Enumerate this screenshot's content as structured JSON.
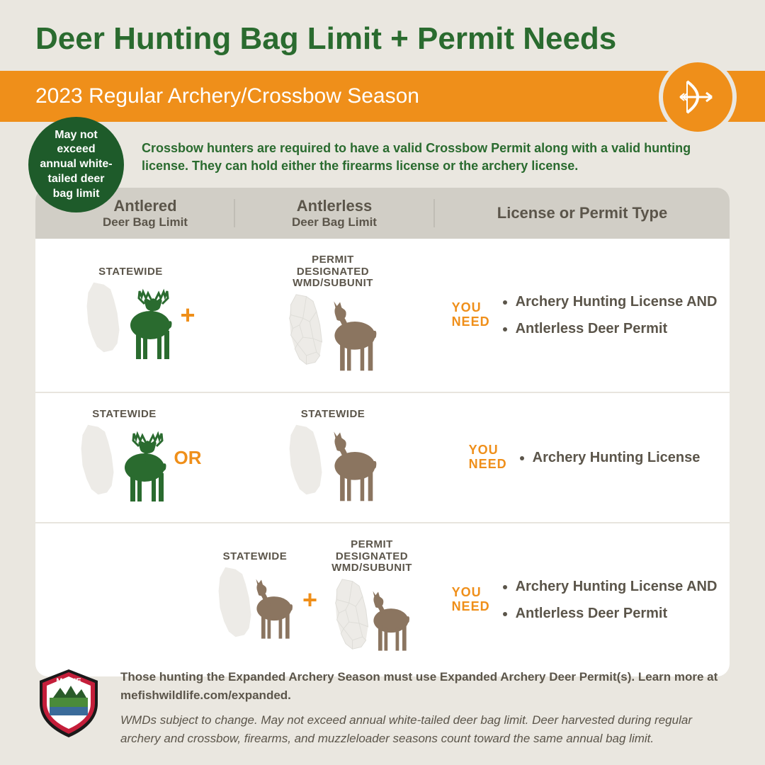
{
  "title": "Deer Hunting Bag Limit + Permit Needs",
  "bannerText": "2023 Regular Archery/Crossbow Season",
  "badgeText": "May not exceed annual white-tailed deer bag limit",
  "noteText": "Crossbow hunters are required to have a valid Crossbow Permit along with a valid hunting license. They can hold either the firearms license or the archery license.",
  "colors": {
    "green": "#2a6b2f",
    "darkGreen": "#1e5b2a",
    "orange": "#ef8f1a",
    "bg": "#eae7e0",
    "brown": "#8b7560",
    "textBrown": "#5b554a",
    "maineGray": "#d8d5cc",
    "maineDetail": "#c9c5bb"
  },
  "headers": {
    "col1Title": "Antlered",
    "col1Sub": "Deer Bag Limit",
    "col2Title": "Antlerless",
    "col2Sub": "Deer Bag Limit",
    "col3": "License or Permit Type"
  },
  "labels": {
    "statewide": "STATEWIDE",
    "permitDesignated": "PERMIT DESIGNATED WMD/SUBUNIT",
    "youNeed": "YOU NEED",
    "plus": "+",
    "or": "OR"
  },
  "rows": [
    {
      "antlered": {
        "label": "STATEWIDE",
        "map": "plain"
      },
      "connector": "+",
      "antlerless": [
        {
          "label": "PERMIT DESIGNATED WMD/SUBUNIT",
          "map": "detailed"
        }
      ],
      "permits": [
        "Archery Hunting License AND",
        "Antlerless Deer Permit"
      ]
    },
    {
      "antlered": {
        "label": "STATEWIDE",
        "map": "plain"
      },
      "connector": "OR",
      "antlerless": [
        {
          "label": "STATEWIDE",
          "map": "plain"
        }
      ],
      "permits": [
        "Archery Hunting License"
      ]
    },
    {
      "antlered": null,
      "connector": "+",
      "antlerless": [
        {
          "label": "STATEWIDE",
          "map": "plain"
        },
        {
          "label": "PERMIT DESIGNATED WMD/SUBUNIT",
          "map": "detailed"
        }
      ],
      "permits": [
        "Archery Hunting License AND",
        "Antlerless Deer Permit"
      ]
    }
  ],
  "footer": {
    "bold": "Those hunting the Expanded Archery Season must use Expanded Archery Deer Permit(s). Learn more at mefishwildlife.com/expanded.",
    "italic": "WMDs subject to change. May not exceed annual white-tailed deer bag limit. Deer harvested during regular archery and crossbow, firearms, and muzzleloader seasons count toward the same annual bag limit."
  }
}
